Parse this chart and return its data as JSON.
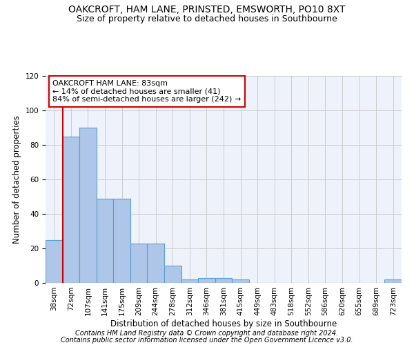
{
  "title": "OAKCROFT, HAM LANE, PRINSTED, EMSWORTH, PO10 8XT",
  "subtitle": "Size of property relative to detached houses in Southbourne",
  "xlabel": "Distribution of detached houses by size in Southbourne",
  "ylabel": "Number of detached properties",
  "footnote1": "Contains HM Land Registry data © Crown copyright and database right 2024.",
  "footnote2": "Contains public sector information licensed under the Open Government Licence v3.0.",
  "bin_labels": [
    "38sqm",
    "72sqm",
    "107sqm",
    "141sqm",
    "175sqm",
    "209sqm",
    "244sqm",
    "278sqm",
    "312sqm",
    "346sqm",
    "381sqm",
    "415sqm",
    "449sqm",
    "483sqm",
    "518sqm",
    "552sqm",
    "586sqm",
    "620sqm",
    "655sqm",
    "689sqm",
    "723sqm"
  ],
  "bar_heights": [
    25,
    85,
    90,
    49,
    49,
    23,
    23,
    10,
    2,
    3,
    3,
    2,
    0,
    0,
    0,
    0,
    0,
    0,
    0,
    0,
    2
  ],
  "bar_color": "#aec6e8",
  "bar_edge_color": "#5a9fd4",
  "vline_x": 1,
  "vline_color": "#cc0000",
  "annotation_line1": "OAKCROFT HAM LANE: 83sqm",
  "annotation_line2": "← 14% of detached houses are smaller (41)",
  "annotation_line3": "84% of semi-detached houses are larger (242) →",
  "ylim": [
    0,
    120
  ],
  "yticks": [
    0,
    20,
    40,
    60,
    80,
    100,
    120
  ],
  "grid_color": "#cccccc",
  "bg_color": "#eef2fa",
  "title_fontsize": 10,
  "subtitle_fontsize": 9,
  "axis_label_fontsize": 8.5,
  "tick_fontsize": 7.5,
  "annotation_fontsize": 8,
  "footnote_fontsize": 7
}
